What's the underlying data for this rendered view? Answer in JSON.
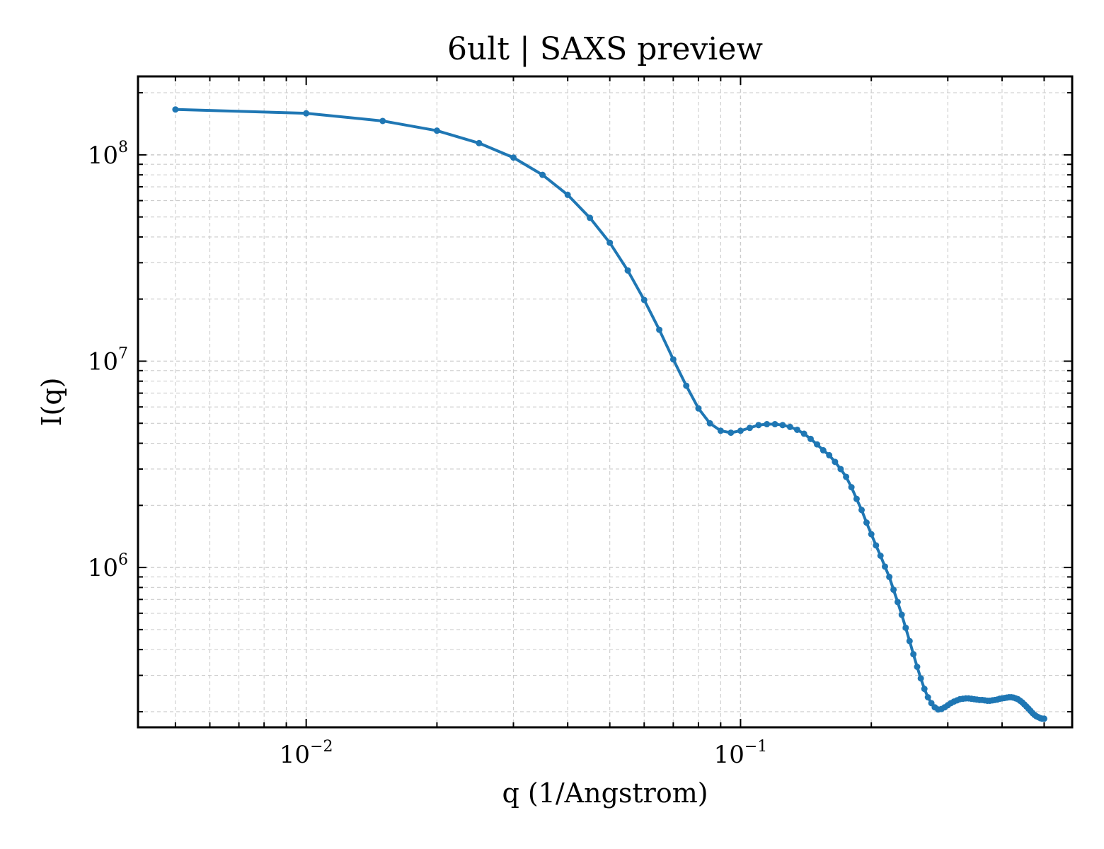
{
  "chart_data": {
    "type": "line",
    "title": "6ult | SAXS preview",
    "xlabel": "q (1/Angstrom)",
    "ylabel": "I(q)",
    "xscale": "log",
    "yscale": "log",
    "xlim": [
      0.0041,
      0.58
    ],
    "ylim": [
      168000,
      240000000
    ],
    "x_ticks": [
      {
        "value": 0.01,
        "base": "10",
        "exp": "−2"
      },
      {
        "value": 0.1,
        "base": "10",
        "exp": "−1"
      }
    ],
    "y_ticks": [
      {
        "value": 1000000,
        "base": "10",
        "exp": "6"
      },
      {
        "value": 10000000,
        "base": "10",
        "exp": "7"
      },
      {
        "value": 100000000,
        "base": "10",
        "exp": "8"
      }
    ],
    "grid": true,
    "line_color": "#1f77b4",
    "series": [
      {
        "x": [
          0.005,
          0.01,
          0.015,
          0.02,
          0.025,
          0.03,
          0.035,
          0.04,
          0.045,
          0.05,
          0.055,
          0.06,
          0.065,
          0.07,
          0.075,
          0.08,
          0.085,
          0.09,
          0.095,
          0.1,
          0.105,
          0.11,
          0.115,
          0.12,
          0.125,
          0.13,
          0.135,
          0.14,
          0.145,
          0.15,
          0.155,
          0.16,
          0.165,
          0.17,
          0.175,
          0.18,
          0.185,
          0.19,
          0.195,
          0.2,
          0.205,
          0.21,
          0.215,
          0.22,
          0.225,
          0.23,
          0.235,
          0.24,
          0.245,
          0.25,
          0.255,
          0.26,
          0.265,
          0.27,
          0.275,
          0.28,
          0.285,
          0.29,
          0.295,
          0.3,
          0.305,
          0.31,
          0.315,
          0.32,
          0.325,
          0.33,
          0.335,
          0.34,
          0.345,
          0.35,
          0.355,
          0.36,
          0.365,
          0.37,
          0.375,
          0.38,
          0.385,
          0.39,
          0.395,
          0.4,
          0.405,
          0.41,
          0.415,
          0.42,
          0.425,
          0.43,
          0.435,
          0.44,
          0.445,
          0.45,
          0.455,
          0.46,
          0.465,
          0.47,
          0.475,
          0.48,
          0.485,
          0.49,
          0.495,
          0.5
        ],
        "y": [
          166000000,
          159000000,
          146000000,
          131000000,
          114000000,
          97000000,
          80000000,
          64000000,
          49500000,
          37500000,
          27500000,
          19800000,
          14200000,
          10200000,
          7600000,
          5900000,
          5000000,
          4600000,
          4500000,
          4600000,
          4750000,
          4900000,
          4950000,
          4950000,
          4900000,
          4800000,
          4650000,
          4450000,
          4200000,
          3950000,
          3700000,
          3500000,
          3250000,
          3000000,
          2750000,
          2450000,
          2150000,
          1900000,
          1650000,
          1450000,
          1280000,
          1140000,
          1010000,
          900000,
          780000,
          680000,
          590000,
          510000,
          440000,
          380000,
          330000,
          290000,
          258000,
          235000,
          220000,
          210000,
          205000,
          206000,
          210000,
          215000,
          220000,
          224000,
          227000,
          230000,
          231000,
          232000,
          232000,
          231000,
          230000,
          229000,
          228000,
          228000,
          227000,
          226000,
          226000,
          227000,
          228000,
          229000,
          231000,
          232000,
          233000,
          234000,
          235000,
          235000,
          234000,
          232000,
          230000,
          226000,
          222000,
          217000,
          212000,
          207000,
          202000,
          197000,
          193000,
          190000,
          188000,
          186000,
          185000,
          185000
        ]
      }
    ]
  }
}
